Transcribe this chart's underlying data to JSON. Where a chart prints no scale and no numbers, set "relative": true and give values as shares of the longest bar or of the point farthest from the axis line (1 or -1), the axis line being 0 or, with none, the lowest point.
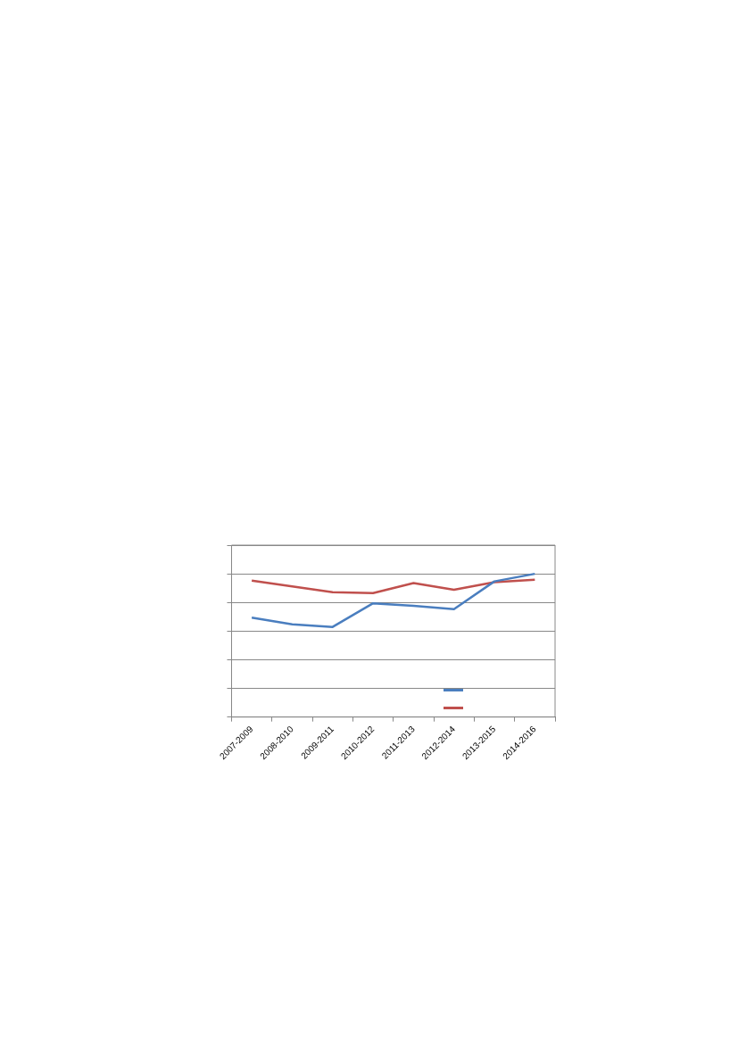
{
  "chart_data": {
    "type": "line",
    "relative": true,
    "categories": [
      "2007-2009",
      "2008-2010",
      "2009-2011",
      "2010-2012",
      "2011-2013",
      "2012-2014",
      "2013-2015",
      "2014-2016"
    ],
    "series": [
      {
        "color": "#4a7ebf",
        "values": [
          0.694,
          0.647,
          0.629,
          0.794,
          0.776,
          0.753,
          0.947,
          1.0
        ]
      },
      {
        "color": "#c0504d",
        "values": [
          0.953,
          0.912,
          0.871,
          0.865,
          0.935,
          0.888,
          0.941,
          0.959
        ]
      }
    ],
    "grid": "y",
    "marker": "none",
    "line_style": "solid"
  }
}
